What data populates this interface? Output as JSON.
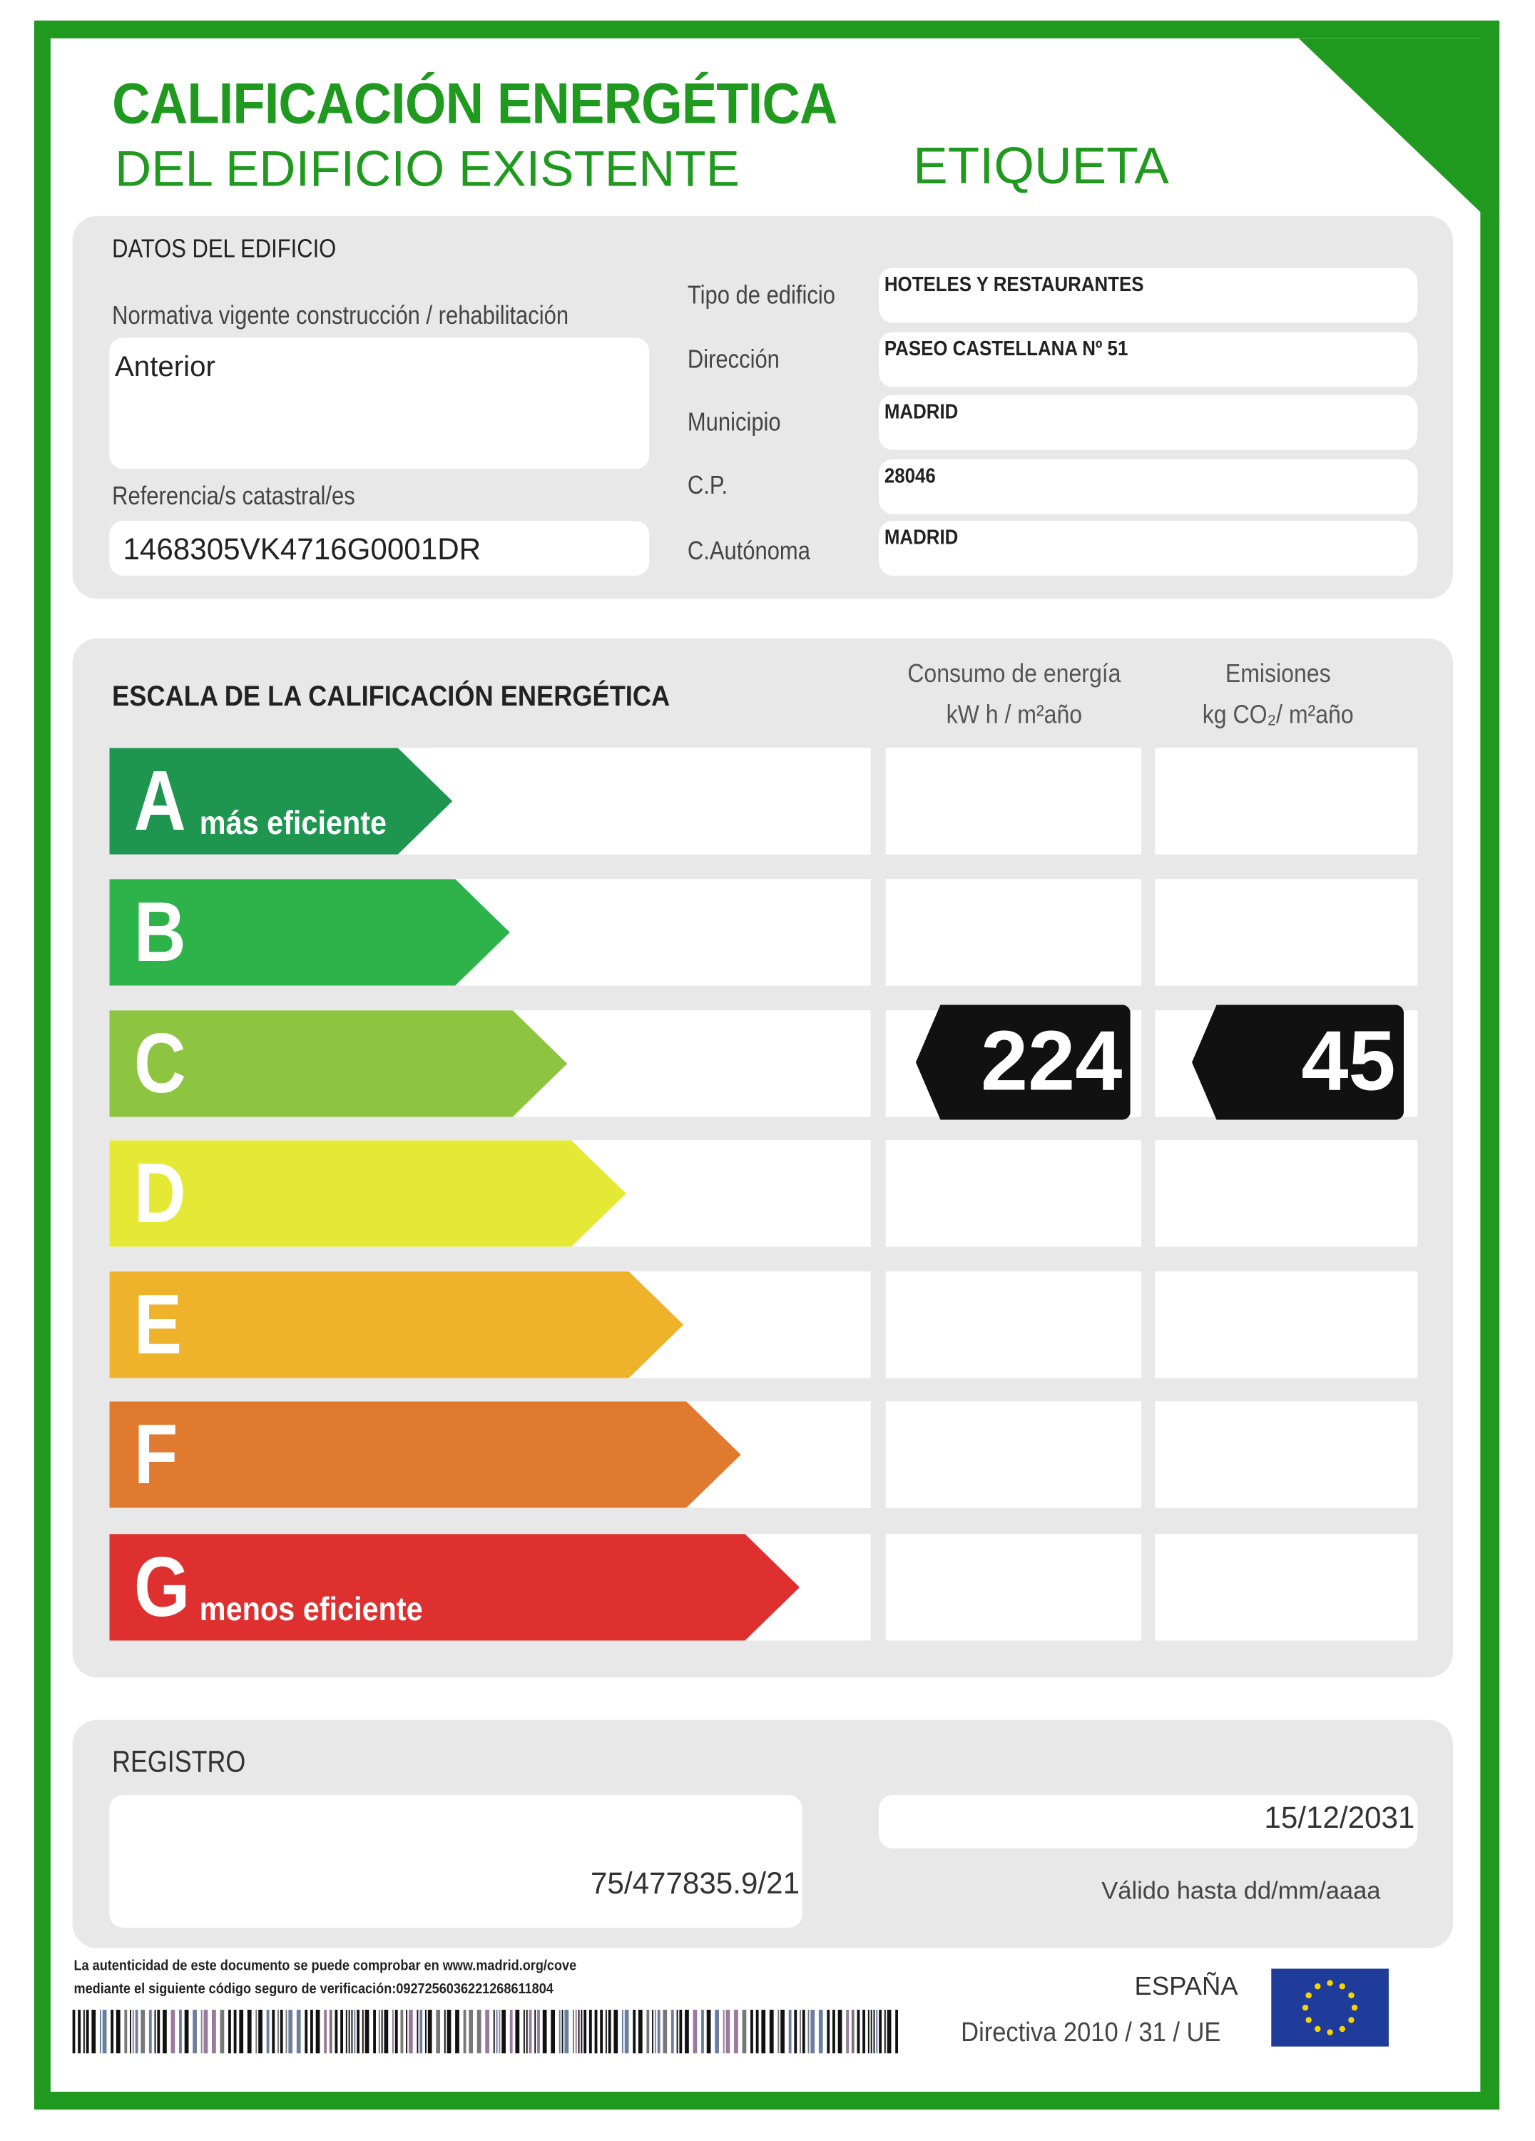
{
  "header": {
    "title_line1": "CALIFICACIÓN ENERGÉTICA",
    "title_line2": "DEL EDIFICIO EXISTENTE",
    "label": "ETIQUETA"
  },
  "building": {
    "section_title": "DATOS DEL EDIFICIO",
    "normativa_label": "Normativa vigente construcción / rehabilitación",
    "normativa_value": "Anterior",
    "referencia_label": "Referencia/s catastral/es",
    "referencia_value": "1468305VK4716G0001DR",
    "fields": [
      {
        "label": "Tipo de edificio",
        "value": "HOTELES Y RESTAURANTES"
      },
      {
        "label": "Dirección",
        "value": "PASEO CASTELLANA Nº 51"
      },
      {
        "label": "Municipio",
        "value": "MADRID"
      },
      {
        "label": "C.P.",
        "value": "28046"
      },
      {
        "label": "C.Autónoma",
        "value": "MADRID"
      }
    ]
  },
  "scale": {
    "title": "ESCALA DE LA CALIFICACIÓN ENERGÉTICA",
    "col_energy_line1": "Consumo de energía",
    "col_energy_line2": "kW h / m²año",
    "col_emissions_line1": "Emisiones",
    "col_emissions_line2": "kg CO₂/ m²año",
    "classes": [
      {
        "letter": "A",
        "note": "más eficiente",
        "color": "#1e9650"
      },
      {
        "letter": "B",
        "note": "",
        "color": "#2db34a"
      },
      {
        "letter": "C",
        "note": "",
        "color": "#8dc540"
      },
      {
        "letter": "D",
        "note": "",
        "color": "#e5e935"
      },
      {
        "letter": "E",
        "note": "",
        "color": "#eeb22b"
      },
      {
        "letter": "F",
        "note": "",
        "color": "#df7a2f"
      },
      {
        "letter": "G",
        "note": "menos eficiente",
        "color": "#df3030"
      }
    ],
    "rating_energy": {
      "class": "C",
      "value": "224"
    },
    "rating_emissions": {
      "class": "C",
      "value": "45"
    }
  },
  "registro": {
    "title": "REGISTRO",
    "number": "75/477835.9/21",
    "valid_date": "15/12/2031",
    "valid_label": "Válido hasta dd/mm/aaaa"
  },
  "footer": {
    "auth_line1": "La autenticidad de este documento se puede comprobar en www.madrid.org/cove",
    "auth_line2": "mediante el siguiente código seguro de verificación:0927256036221268611804",
    "country": "ESPAÑA",
    "directive": "Directiva 2010 / 31 / UE"
  },
  "colors": {
    "brand_green": "#1f9a1f",
    "panel_gray": "#e8e8e8",
    "eu_blue": "#1f3c9a",
    "eu_star": "#f5d400"
  }
}
